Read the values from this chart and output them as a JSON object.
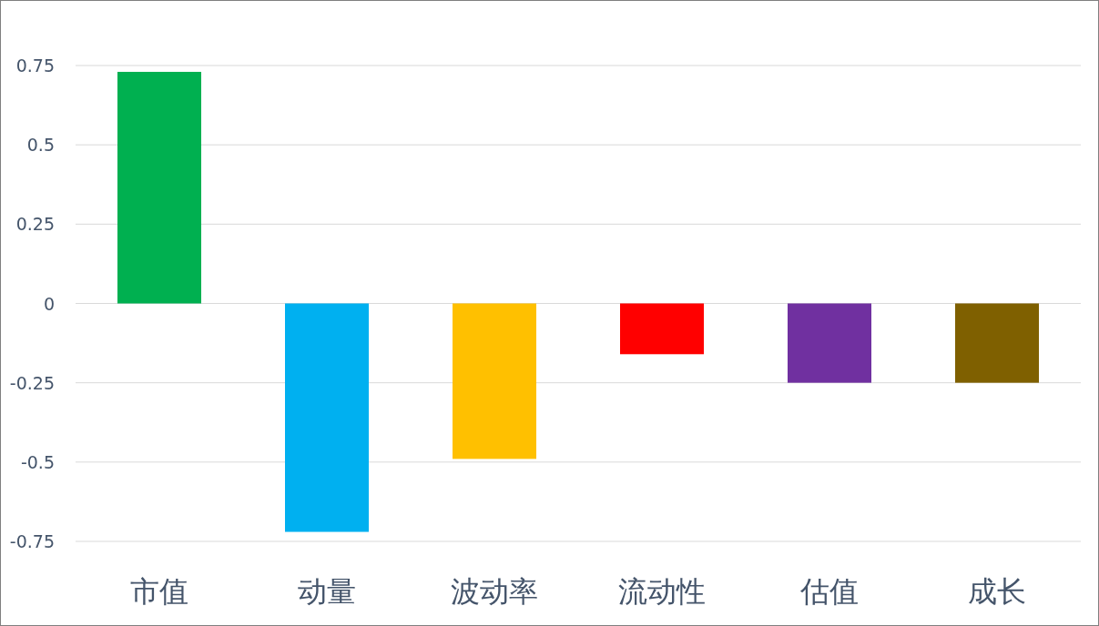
{
  "chart_data": {
    "type": "bar",
    "categories": [
      "市值",
      "动量",
      "波动率",
      "流动性",
      "估值",
      "成长"
    ],
    "values": [
      0.73,
      -0.72,
      -0.49,
      -0.16,
      -0.25,
      -0.25
    ],
    "colors": [
      "#00b050",
      "#00b0f0",
      "#ffc000",
      "#ff0000",
      "#7030a0",
      "#7f6000"
    ],
    "ylim": [
      -0.75,
      0.75
    ],
    "yticks": [
      -0.75,
      -0.5,
      -0.25,
      0,
      0.25,
      0.5,
      0.75
    ],
    "grid": "y"
  }
}
